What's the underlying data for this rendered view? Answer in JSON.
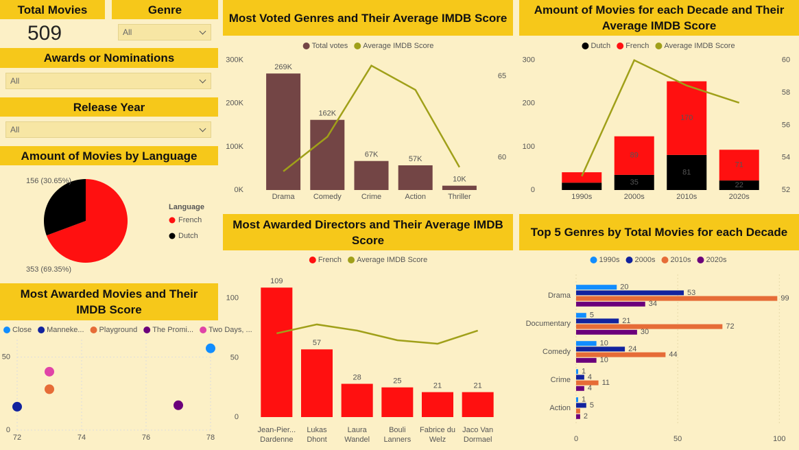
{
  "cards": {
    "total_movies": {
      "label": "Total Movies",
      "value": 509
    }
  },
  "slicers": [
    {
      "title": "Genre",
      "value": "All"
    },
    {
      "title": "Awards or Nominations",
      "value": "All"
    },
    {
      "title": "Release Year",
      "value": "All"
    }
  ],
  "chart_data": [
    {
      "type": "pie",
      "title": "Amount of Movies by Language",
      "legend_title": "Language",
      "legend": "right",
      "categories": [
        "French",
        "Dutch"
      ],
      "values": [
        353,
        156
      ],
      "value_labels": [
        "353 (69.35%)",
        "156 (30.65%)"
      ],
      "colors": [
        "#ff1010",
        "#000000"
      ]
    },
    {
      "type": "scatter",
      "title": "Most Awarded Movies and Their IMDB Score",
      "legend": "top",
      "grid": true,
      "xlim": [
        72,
        78
      ],
      "xticks": [
        72,
        74,
        76,
        78
      ],
      "ylim": [
        0,
        62
      ],
      "yticks": [
        0,
        50
      ],
      "series": [
        {
          "name": "Close",
          "color": "#118dff",
          "x": [
            78
          ],
          "values": [
            56
          ]
        },
        {
          "name": "Manneke...",
          "color": "#12239e",
          "x": [
            72
          ],
          "values": [
            16
          ]
        },
        {
          "name": "Playground",
          "color": "#e66c37",
          "x": [
            73
          ],
          "values": [
            28
          ]
        },
        {
          "name": "The Promi...",
          "color": "#6b007b",
          "x": [
            77
          ],
          "values": [
            17
          ]
        },
        {
          "name": "Two Days, ...",
          "color": "#e044a7",
          "x": [
            73
          ],
          "values": [
            40
          ]
        }
      ]
    },
    {
      "type": "combo",
      "title": "Most Voted Genres and Their Average IMDB Score",
      "legend": "top",
      "categories": [
        "Drama",
        "Comedy",
        "Crime",
        "Action",
        "Thriller"
      ],
      "ylim": [
        0,
        312000
      ],
      "yticks": [
        {
          "value": 0,
          "label": "0K"
        },
        {
          "value": 100000,
          "label": "100K"
        },
        {
          "value": 200000,
          "label": "200K"
        },
        {
          "value": 300000,
          "label": "300K"
        }
      ],
      "y2lim": [
        58,
        66.3
      ],
      "y2ticks": [
        60,
        65
      ],
      "series": [
        {
          "name": "Total votes",
          "color": "#734545",
          "values": [
            269000,
            162000,
            67000,
            57000,
            10000
          ],
          "value_labels": [
            "269K",
            "162K",
            "67K",
            "57K",
            "10K"
          ]
        },
        {
          "name": "Average IMDB Score",
          "color": "#a0a019",
          "axis": "y2",
          "values": [
            59.15,
            61.27,
            65.64,
            64.15,
            59.4
          ]
        }
      ]
    },
    {
      "type": "stacked_combo",
      "title": "Amount of Movies for each Decade and Their Average IMDB Score",
      "legend": "top",
      "categories": [
        "1990s",
        "2000s",
        "2010s",
        "2020s"
      ],
      "ylim": [
        0,
        312
      ],
      "yticks": [
        0,
        100,
        200,
        300
      ],
      "y2lim": [
        52,
        60.33
      ],
      "y2ticks": [
        52,
        54,
        56,
        58,
        60
      ],
      "series": [
        {
          "name": "Dutch",
          "color": "#000000",
          "values": [
            17,
            35,
            81,
            22
          ],
          "value_labels": [
            null,
            35,
            81,
            22
          ]
        },
        {
          "name": "French",
          "color": "#ff1010",
          "values": [
            24,
            89,
            170,
            71
          ],
          "value_labels": [
            null,
            89,
            170,
            71
          ]
        },
        {
          "name": "Average IMDB Score",
          "color": "#a0a019",
          "axis": "y2",
          "values": [
            52.85,
            60,
            58.44,
            57.38
          ]
        }
      ]
    },
    {
      "type": "combo",
      "title": "Most Awarded Directors and Their Average IMDB Score",
      "legend": "top",
      "categories": [
        [
          "Jean-Pier...",
          "Dardenne"
        ],
        [
          "Lukas",
          "Dhont"
        ],
        [
          "Laura",
          "Wandel"
        ],
        [
          "Bouli",
          "Lanners"
        ],
        [
          "Fabrice du",
          "Welz"
        ],
        [
          "Jaco Van",
          "Dormael"
        ]
      ],
      "ylim": [
        0,
        123
      ],
      "yticks": [
        0,
        50,
        100
      ],
      "y2lim": [
        0,
        10
      ],
      "series": [
        {
          "name": "French",
          "color": "#ff1010",
          "values": [
            109,
            57,
            28,
            25,
            21,
            21
          ]
        },
        {
          "name": "Average IMDB Score",
          "color": "#a0a019",
          "axis": "y2",
          "values": [
            5.73,
            6.34,
            5.92,
            5.26,
            5.02,
            5.92
          ]
        }
      ]
    },
    {
      "type": "hbar",
      "title": "Top 5 Genres by Total Movies for each Decade",
      "legend": "top",
      "grid": true,
      "categories": [
        "Drama",
        "Documentary",
        "Comedy",
        "Crime",
        "Action"
      ],
      "xlim": [
        0,
        108
      ],
      "xticks": [
        0,
        50,
        100
      ],
      "series": [
        {
          "name": "1990s",
          "color": "#118dff",
          "values": [
            20,
            5,
            10,
            1,
            1
          ]
        },
        {
          "name": "2000s",
          "color": "#12239e",
          "values": [
            53,
            21,
            24,
            4,
            5
          ]
        },
        {
          "name": "2010s",
          "color": "#e66c37",
          "values": [
            99,
            72,
            44,
            11,
            2
          ],
          "value_labels": [
            99,
            72,
            44,
            11,
            null
          ]
        },
        {
          "name": "2020s",
          "color": "#6b007b",
          "values": [
            34,
            30,
            10,
            4,
            2
          ]
        }
      ]
    }
  ]
}
